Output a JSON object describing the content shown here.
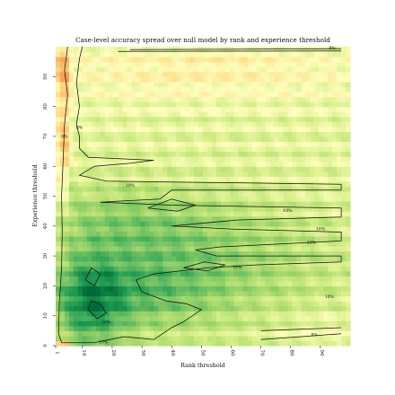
{
  "chart_data": {
    "type": "heatmap",
    "title": "Case-level accuracy spread over null model by rank and experience threshold",
    "xlabel": "Rank threshold",
    "ylabel": "Experience threshold",
    "x_ticks": [
      "1",
      "10",
      "20",
      "30",
      "40",
      "50",
      "60",
      "70",
      "80",
      "90"
    ],
    "y_ticks": [
      "0",
      "10",
      "20",
      "30",
      "40",
      "50",
      "60",
      "70",
      "80",
      "90"
    ],
    "xlim": [
      1,
      100
    ],
    "ylim": [
      0,
      100
    ],
    "colormap": [
      "#a50026",
      "#f46d43",
      "#fdae61",
      "#fee08b",
      "#ffffbf",
      "#d9ef8b",
      "#a6d96a",
      "#66bd63",
      "#1a9850",
      "#006837"
    ],
    "contour_level": "10%",
    "contour_labels": [
      "8%",
      "10%",
      "10%",
      "10%",
      "10%",
      "10%",
      "10%",
      "10%",
      "10%",
      "8%",
      "8%",
      "8%"
    ],
    "grid": false,
    "legend": "none"
  }
}
